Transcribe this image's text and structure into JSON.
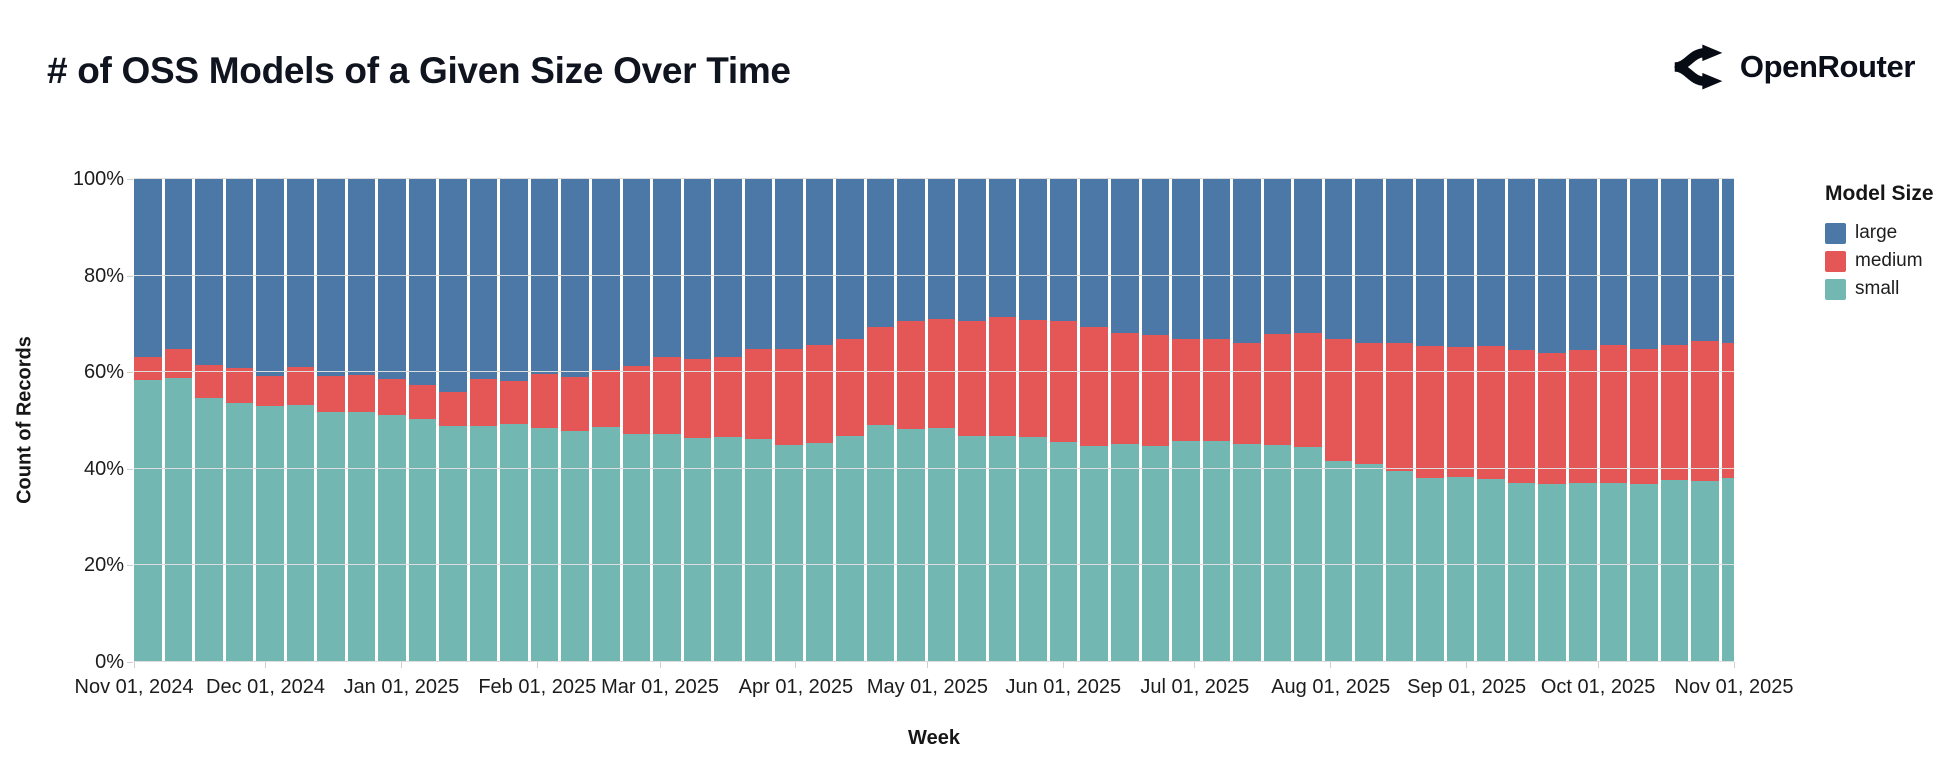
{
  "header": {
    "title": "# of OSS Models of a Given Size Over Time",
    "brand": "OpenRouter"
  },
  "chart_data": {
    "type": "bar",
    "stacked": true,
    "normalized": true,
    "title": "# of OSS Models of a Given Size Over Time",
    "xlabel": "Week",
    "ylabel": "Count of Records",
    "ylim": [
      0,
      100
    ],
    "grid": true,
    "y_tick_labels": [
      "0%",
      "20%",
      "40%",
      "60%",
      "80%",
      "100%"
    ],
    "x_tick_labels": [
      "Nov 01, 2024",
      "Dec 01, 2024",
      "Jan 01, 2025",
      "Feb 01, 2025",
      "Mar 01, 2025",
      "Apr 01, 2025",
      "May 01, 2025",
      "Jun 01, 2025",
      "Jul 01, 2025",
      "Aug 01, 2025",
      "Sep 01, 2025",
      "Oct 01, 2025",
      "Nov 01, 2025"
    ],
    "x_tick_day_offsets": [
      0,
      30,
      61,
      92,
      120,
      151,
      181,
      212,
      242,
      273,
      304,
      334,
      365
    ],
    "weeks": [
      "2024-11-01",
      "2024-11-08",
      "2024-11-15",
      "2024-11-22",
      "2024-11-29",
      "2024-12-06",
      "2024-12-13",
      "2024-12-20",
      "2024-12-27",
      "2025-01-03",
      "2025-01-10",
      "2025-01-17",
      "2025-01-24",
      "2025-01-31",
      "2025-02-07",
      "2025-02-14",
      "2025-02-21",
      "2025-02-28",
      "2025-03-07",
      "2025-03-14",
      "2025-03-21",
      "2025-03-28",
      "2025-04-04",
      "2025-04-11",
      "2025-04-18",
      "2025-04-25",
      "2025-05-02",
      "2025-05-09",
      "2025-05-16",
      "2025-05-23",
      "2025-05-30",
      "2025-06-06",
      "2025-06-13",
      "2025-06-20",
      "2025-06-27",
      "2025-07-04",
      "2025-07-11",
      "2025-07-18",
      "2025-07-25",
      "2025-08-01",
      "2025-08-08",
      "2025-08-15",
      "2025-08-22",
      "2025-08-29",
      "2025-09-05",
      "2025-09-12",
      "2025-09-19",
      "2025-09-26",
      "2025-10-03",
      "2025-10-10",
      "2025-10-17",
      "2025-10-24",
      "2025-10-31"
    ],
    "series": [
      {
        "name": "large",
        "color": "#4c78a8",
        "values": [
          36.8,
          35.1,
          38.5,
          39.2,
          40.8,
          38.9,
          40.8,
          40.6,
          41.5,
          42.6,
          44.0,
          41.4,
          41.8,
          40.4,
          40.9,
          39.6,
          38.7,
          36.9,
          37.3,
          36.9,
          35.3,
          35.1,
          34.4,
          33.2,
          30.6,
          29.5,
          28.9,
          29.3,
          28.5,
          29.1,
          29.3,
          30.7,
          31.8,
          32.2,
          33.1,
          33.1,
          34.0,
          32.1,
          31.8,
          33.2,
          34.0,
          34.0,
          34.6,
          34.7,
          34.6,
          35.4,
          36.0,
          35.4,
          34.4,
          35.3,
          34.4,
          33.5,
          33.9
        ]
      },
      {
        "name": "medium",
        "color": "#e45756",
        "values": [
          4.8,
          6.0,
          6.9,
          7.1,
          6.3,
          7.8,
          7.5,
          7.7,
          7.4,
          7.1,
          7.1,
          9.7,
          9.0,
          11.1,
          11.3,
          11.7,
          14.0,
          16.0,
          16.4,
          16.6,
          18.6,
          20.0,
          20.2,
          20.0,
          20.3,
          22.3,
          22.6,
          23.9,
          24.7,
          24.4,
          25.1,
          24.5,
          23.1,
          23.0,
          21.1,
          21.1,
          20.9,
          23.0,
          23.6,
          25.1,
          25.0,
          26.4,
          27.4,
          27.1,
          27.6,
          27.6,
          27.2,
          27.6,
          28.6,
          27.8,
          27.9,
          29.0,
          28.1
        ]
      },
      {
        "name": "small",
        "color": "#72b7b2",
        "values": [
          58.4,
          58.9,
          54.6,
          53.7,
          52.9,
          53.3,
          51.7,
          51.7,
          51.1,
          50.3,
          48.9,
          48.9,
          49.2,
          48.5,
          47.8,
          48.7,
          47.3,
          47.1,
          46.3,
          46.5,
          46.1,
          44.9,
          45.4,
          46.8,
          49.1,
          48.2,
          48.5,
          46.8,
          46.8,
          46.5,
          45.6,
          44.8,
          45.1,
          44.8,
          45.8,
          45.8,
          45.1,
          44.9,
          44.6,
          41.7,
          41.0,
          39.6,
          38.0,
          38.2,
          37.8,
          37.0,
          36.8,
          37.0,
          37.0,
          36.9,
          37.7,
          37.5,
          38.0
        ]
      }
    ],
    "legend": {
      "title": "Model Size",
      "entries": [
        "large",
        "medium",
        "small"
      ],
      "position": "right"
    }
  }
}
